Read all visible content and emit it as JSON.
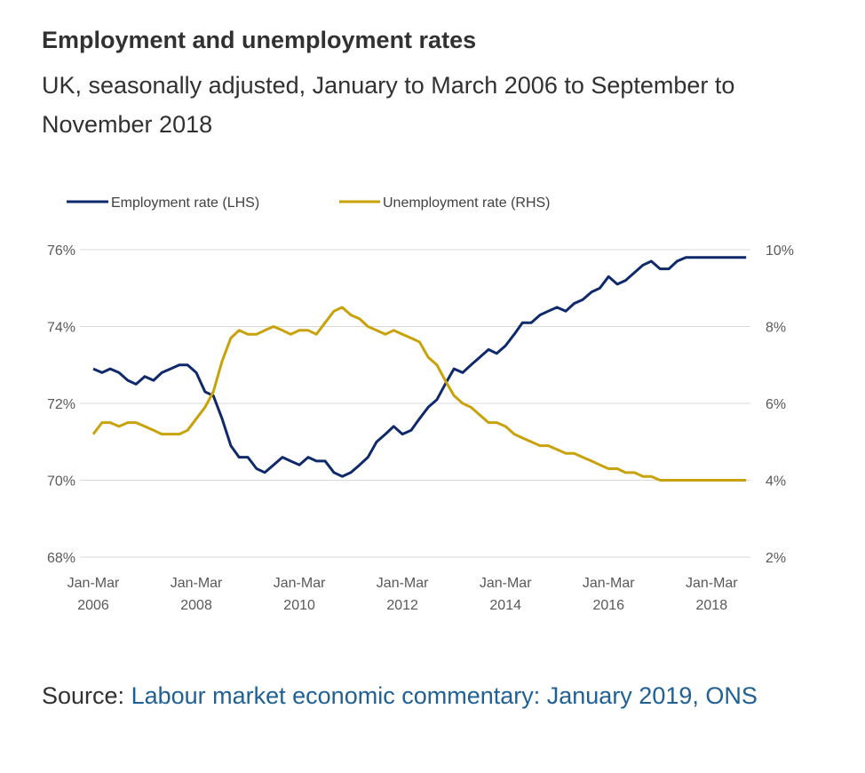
{
  "header": {
    "title": "Employment and unemployment rates",
    "subtitle": "UK, seasonally adjusted, January to March 2006 to September to November 2018"
  },
  "source": {
    "prefix": "Source: ",
    "link_text": "Labour market economic commentary: January 2019, ONS"
  },
  "colors": {
    "employment": "#0f2a6b",
    "unemployment": "#c9a20a",
    "grid": "#d9d9d9",
    "link": "#206095"
  },
  "chart_data": {
    "type": "line",
    "title": "Employment and unemployment rates",
    "subtitle": "UK, seasonally adjusted, January to March 2006 to September to November 2018",
    "x_tick_labels": [
      [
        "Jan-Mar",
        "2006"
      ],
      [
        "Jan-Mar",
        "2008"
      ],
      [
        "Jan-Mar",
        "2010"
      ],
      [
        "Jan-Mar",
        "2012"
      ],
      [
        "Jan-Mar",
        "2014"
      ],
      [
        "Jan-Mar",
        "2016"
      ],
      [
        "Jan-Mar",
        "2018"
      ]
    ],
    "x_range": [
      2006.0,
      2018.667
    ],
    "y_left": {
      "range": [
        68,
        76
      ],
      "ticks": [
        76,
        74,
        72,
        70,
        68
      ],
      "tick_labels": [
        "76%",
        "74%",
        "72%",
        "70%",
        "68%"
      ]
    },
    "y_right": {
      "range": [
        2,
        10
      ],
      "ticks": [
        10,
        8,
        6,
        4,
        2
      ],
      "tick_labels": [
        "10%",
        "8%",
        "6%",
        "4%",
        "2%"
      ]
    },
    "grid": true,
    "legend_position": "top",
    "series": [
      {
        "name": "Employment rate (LHS)",
        "axis": "left",
        "x": [
          2006.0,
          2006.17,
          2006.33,
          2006.5,
          2006.67,
          2006.83,
          2007.0,
          2007.17,
          2007.33,
          2007.5,
          2007.67,
          2007.83,
          2008.0,
          2008.17,
          2008.33,
          2008.5,
          2008.67,
          2008.83,
          2009.0,
          2009.17,
          2009.33,
          2009.5,
          2009.67,
          2009.83,
          2010.0,
          2010.17,
          2010.33,
          2010.5,
          2010.67,
          2010.83,
          2011.0,
          2011.17,
          2011.33,
          2011.5,
          2011.67,
          2011.83,
          2012.0,
          2012.17,
          2012.33,
          2012.5,
          2012.67,
          2012.83,
          2013.0,
          2013.17,
          2013.33,
          2013.5,
          2013.67,
          2013.83,
          2014.0,
          2014.17,
          2014.33,
          2014.5,
          2014.67,
          2014.83,
          2015.0,
          2015.17,
          2015.33,
          2015.5,
          2015.67,
          2015.83,
          2016.0,
          2016.17,
          2016.33,
          2016.5,
          2016.67,
          2016.83,
          2017.0,
          2017.17,
          2017.33,
          2017.5,
          2017.67,
          2017.83,
          2018.0,
          2018.17,
          2018.33,
          2018.5,
          2018.67
        ],
        "values": [
          72.9,
          72.8,
          72.9,
          72.8,
          72.6,
          72.5,
          72.7,
          72.6,
          72.8,
          72.9,
          73.0,
          73.0,
          72.8,
          72.3,
          72.2,
          71.6,
          70.9,
          70.6,
          70.6,
          70.3,
          70.2,
          70.4,
          70.6,
          70.5,
          70.4,
          70.6,
          70.5,
          70.5,
          70.2,
          70.1,
          70.2,
          70.4,
          70.6,
          71.0,
          71.2,
          71.4,
          71.2,
          71.3,
          71.6,
          71.9,
          72.1,
          72.5,
          72.9,
          72.8,
          73.0,
          73.2,
          73.4,
          73.3,
          73.5,
          73.8,
          74.1,
          74.1,
          74.3,
          74.4,
          74.5,
          74.4,
          74.6,
          74.7,
          74.9,
          75.0,
          75.3,
          75.1,
          75.2,
          75.4,
          75.6,
          75.7,
          75.5,
          75.5,
          75.7,
          75.8,
          75.8,
          75.8,
          75.8,
          75.8,
          75.8,
          75.8,
          75.8
        ]
      },
      {
        "name": "Unemployment rate (RHS)",
        "axis": "right",
        "x": [
          2006.0,
          2006.17,
          2006.33,
          2006.5,
          2006.67,
          2006.83,
          2007.0,
          2007.17,
          2007.33,
          2007.5,
          2007.67,
          2007.83,
          2008.0,
          2008.17,
          2008.33,
          2008.5,
          2008.67,
          2008.83,
          2009.0,
          2009.17,
          2009.33,
          2009.5,
          2009.67,
          2009.83,
          2010.0,
          2010.17,
          2010.33,
          2010.5,
          2010.67,
          2010.83,
          2011.0,
          2011.17,
          2011.33,
          2011.5,
          2011.67,
          2011.83,
          2012.0,
          2012.17,
          2012.33,
          2012.5,
          2012.67,
          2012.83,
          2013.0,
          2013.17,
          2013.33,
          2013.5,
          2013.67,
          2013.83,
          2014.0,
          2014.17,
          2014.33,
          2014.5,
          2014.67,
          2014.83,
          2015.0,
          2015.17,
          2015.33,
          2015.5,
          2015.67,
          2015.83,
          2016.0,
          2016.17,
          2016.33,
          2016.5,
          2016.67,
          2016.83,
          2017.0,
          2017.17,
          2017.33,
          2017.5,
          2017.67,
          2017.83,
          2018.0,
          2018.17,
          2018.33,
          2018.5,
          2018.67
        ],
        "values": [
          5.2,
          5.5,
          5.5,
          5.4,
          5.5,
          5.5,
          5.4,
          5.3,
          5.2,
          5.2,
          5.2,
          5.3,
          5.6,
          5.9,
          6.3,
          7.1,
          7.7,
          7.9,
          7.8,
          7.8,
          7.9,
          8.0,
          7.9,
          7.8,
          7.9,
          7.9,
          7.8,
          8.1,
          8.4,
          8.5,
          8.3,
          8.2,
          8.0,
          7.9,
          7.8,
          7.9,
          7.8,
          7.7,
          7.6,
          7.2,
          7.0,
          6.6,
          6.2,
          6.0,
          5.9,
          5.7,
          5.5,
          5.5,
          5.4,
          5.2,
          5.1,
          5.0,
          4.9,
          4.9,
          4.8,
          4.7,
          4.7,
          4.6,
          4.5,
          4.4,
          4.3,
          4.3,
          4.2,
          4.2,
          4.1,
          4.1,
          4.0,
          4.0,
          4.0,
          4.0,
          4.0,
          4.0,
          4.0,
          4.0,
          4.0,
          4.0,
          4.0
        ]
      }
    ]
  }
}
